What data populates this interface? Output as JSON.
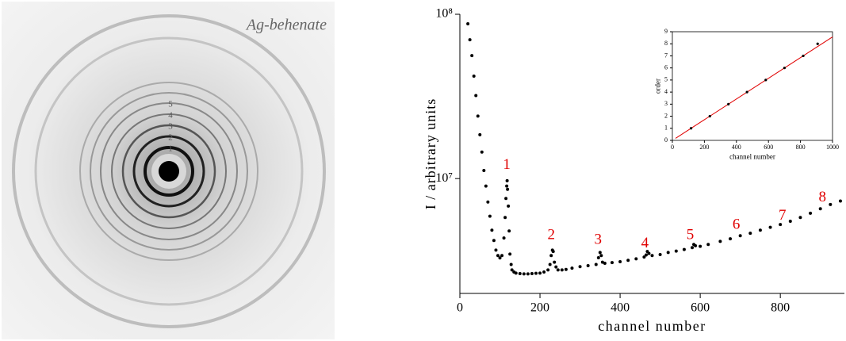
{
  "image": {
    "label": "Ag-behenate",
    "ring_labels": [
      "5",
      "4",
      "3",
      "2",
      "1"
    ]
  },
  "chart_data": [
    {
      "type": "scatter",
      "x_label": "channel number",
      "y_label": "I / arbitrary units",
      "color": "#000000",
      "log_y": true,
      "xlim": [
        0,
        960
      ],
      "xticks": [
        0,
        200,
        400,
        600,
        800
      ],
      "ylim": [
        2000000,
        100000000
      ],
      "yticks": [
        {
          "value": 10000000,
          "label": "10⁷"
        },
        {
          "value": 100000000,
          "label": "10⁸"
        }
      ],
      "x": [
        20,
        25,
        30,
        35,
        40,
        45,
        50,
        55,
        60,
        65,
        70,
        75,
        80,
        85,
        90,
        95,
        100,
        105,
        110,
        113,
        115,
        117,
        118,
        119,
        121,
        123,
        125,
        128,
        130,
        135,
        140,
        150,
        160,
        170,
        180,
        190,
        200,
        210,
        220,
        225,
        228,
        231,
        233,
        236,
        240,
        245,
        255,
        265,
        280,
        300,
        320,
        340,
        346,
        350,
        353,
        356,
        362,
        380,
        400,
        420,
        440,
        460,
        465,
        468,
        472,
        480,
        500,
        520,
        540,
        560,
        580,
        584,
        588,
        600,
        620,
        650,
        675,
        700,
        725,
        750,
        775,
        800,
        825,
        850,
        875,
        900,
        925,
        950
      ],
      "values": [
        87500000,
        70000000,
        56000000,
        42000000,
        32000000,
        24000000,
        18500000,
        14500000,
        11200000,
        9000000,
        7200000,
        5900000,
        4850000,
        4200000,
        3670000,
        3400000,
        3290000,
        3400000,
        4350000,
        5800000,
        7570000,
        9000000,
        9700000,
        8600000,
        6800000,
        4800000,
        3470000,
        3000000,
        2780000,
        2700000,
        2660000,
        2640000,
        2630000,
        2630000,
        2640000,
        2650000,
        2660000,
        2700000,
        2780000,
        3000000,
        3400000,
        3670000,
        3600000,
        3100000,
        2900000,
        2780000,
        2780000,
        2800000,
        2850000,
        2910000,
        2950000,
        3000000,
        3300000,
        3550000,
        3400000,
        3100000,
        3050000,
        3080000,
        3120000,
        3180000,
        3250000,
        3330000,
        3430000,
        3600000,
        3500000,
        3400000,
        3450000,
        3550000,
        3620000,
        3700000,
        3800000,
        3970000,
        3900000,
        3870000,
        3970000,
        4150000,
        4300000,
        4490000,
        4650000,
        4850000,
        5050000,
        5250000,
        5500000,
        5800000,
        6150000,
        6550000,
        6950000,
        7300000
      ],
      "annotations": [
        {
          "text": "1",
          "x": 117,
          "y": 12000000
        },
        {
          "text": "2",
          "x": 228,
          "y": 4500000
        },
        {
          "text": "3",
          "x": 345,
          "y": 4200000
        },
        {
          "text": "4",
          "x": 462,
          "y": 4000000
        },
        {
          "text": "5",
          "x": 575,
          "y": 4500000
        },
        {
          "text": "6",
          "x": 690,
          "y": 5200000
        },
        {
          "text": "7",
          "x": 805,
          "y": 5900000
        },
        {
          "text": "8",
          "x": 905,
          "y": 7600000
        }
      ],
      "annotation_color": "#e00000"
    },
    {
      "type": "scatter",
      "x_label": "channel number",
      "y_label": "order",
      "color": "#000000",
      "xlim": [
        0,
        1000
      ],
      "xticks": [
        0,
        200,
        400,
        600,
        800,
        1000
      ],
      "ylim": [
        0,
        9
      ],
      "yticks": [
        0,
        1,
        2,
        3,
        4,
        5,
        6,
        7,
        8,
        9
      ],
      "x": [
        117,
        234,
        350,
        466,
        583,
        700,
        817,
        907
      ],
      "values": [
        1,
        2,
        3,
        4,
        5,
        6,
        7,
        8
      ],
      "fit": {
        "color": "#e00000",
        "x": [
          20,
          1000
        ],
        "values": [
          0.17,
          8.57
        ]
      }
    }
  ]
}
